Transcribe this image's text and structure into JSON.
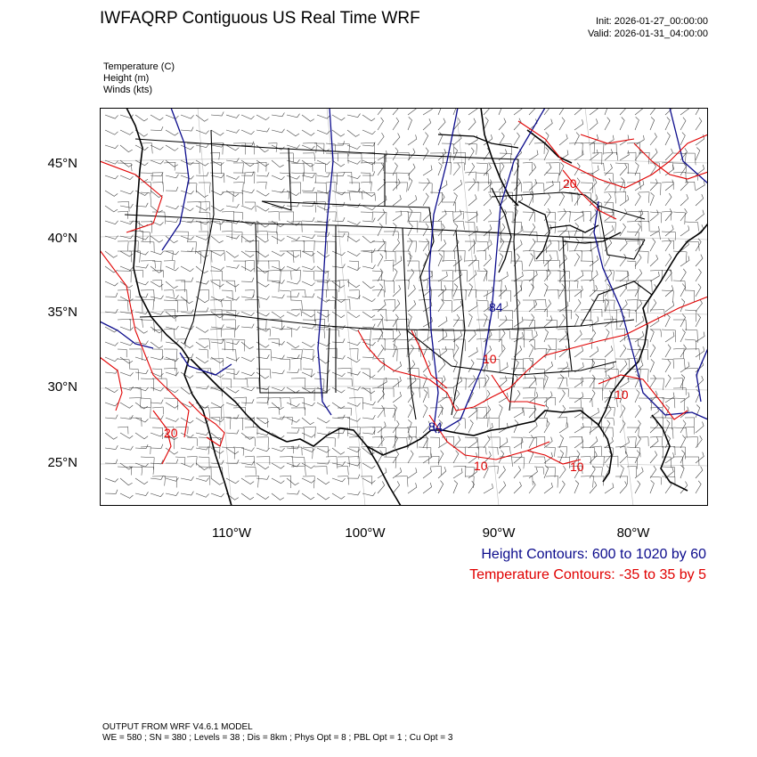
{
  "header": {
    "title": "IWFAQRP Contiguous US Real Time WRF",
    "init": "Init: 2026-01-27_00:00:00",
    "valid": "Valid: 2026-01-31_04:00:00"
  },
  "fields": {
    "temperature": "Temperature   (C)",
    "height": "Height   (m)",
    "winds": "Winds   (kts)"
  },
  "axes": {
    "lat_ticks": [
      "45°N",
      "40°N",
      "35°N",
      "30°N",
      "25°N"
    ],
    "lon_ticks": [
      "110°W",
      "100°W",
      "90°W",
      "80°W"
    ]
  },
  "contour_labels": {
    "height": [
      "84",
      "84"
    ],
    "temperature": [
      "20",
      "10",
      "10",
      "10",
      "10",
      "20"
    ]
  },
  "legend": {
    "height_contours": "Height Contours: 600 to 1020 by 60",
    "temperature_contours": "Temperature Contours: -35 to 35 by 5"
  },
  "footer": {
    "line1": "OUTPUT FROM WRF V4.6.1 MODEL",
    "line2": "WE = 580 ; SN = 380 ; Levels = 38 ; Dis = 8km ; Phys Opt = 8 ; PBL Opt = 1 ; Cu Opt = 3"
  },
  "colors": {
    "height_contour": "#0b0b8c",
    "temperature_contour": "#e00000",
    "boundaries": "#000000",
    "frame": "#000000",
    "background": "#ffffff"
  }
}
